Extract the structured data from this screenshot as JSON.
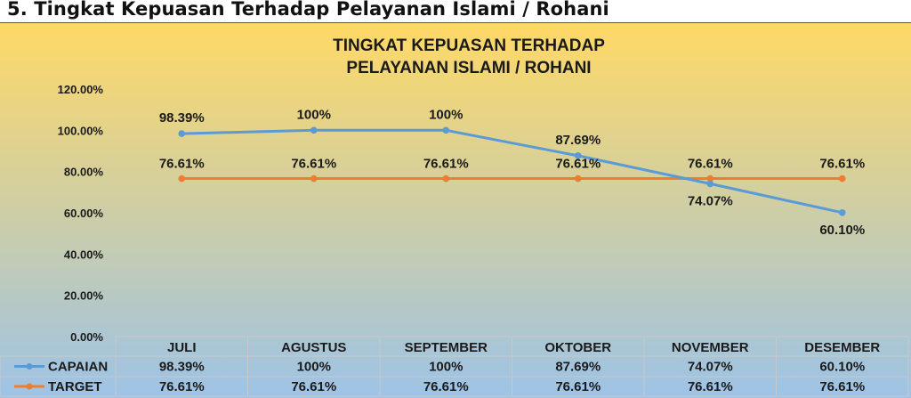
{
  "page": {
    "heading": "5. Tingkat Kepuasan Terhadap Pelayanan Islami / Rohani"
  },
  "chart_data": {
    "type": "line",
    "title": "TINGKAT KEPUASAN TERHADAP",
    "subtitle": "PELAYANAN ISLAMI / ROHANI",
    "categories": [
      "JULI",
      "AGUSTUS",
      "SEPTEMBER",
      "OKTOBER",
      "NOVEMBER",
      "DESEMBER"
    ],
    "yticks": [
      "0.00%",
      "20.00%",
      "40.00%",
      "60.00%",
      "80.00%",
      "100.00%",
      "120.00%"
    ],
    "ylim": [
      0,
      120
    ],
    "grid": false,
    "legend": "data-table",
    "series": [
      {
        "name": "CAPAIAN",
        "color": "#5b9bd5",
        "values": [
          98.39,
          100,
          100,
          87.69,
          74.07,
          60.1
        ],
        "labels": [
          "98.39%",
          "100%",
          "100%",
          "87.69%",
          "74.07%",
          "60.10%"
        ]
      },
      {
        "name": "TARGET",
        "color": "#ed7d31",
        "values": [
          76.61,
          76.61,
          76.61,
          76.61,
          76.61,
          76.61
        ],
        "labels": [
          "76.61%",
          "76.61%",
          "76.61%",
          "76.61%",
          "76.61%",
          "76.61%"
        ]
      }
    ],
    "background": {
      "top": "#ffd966",
      "bottom": "#9dc3e6"
    }
  }
}
